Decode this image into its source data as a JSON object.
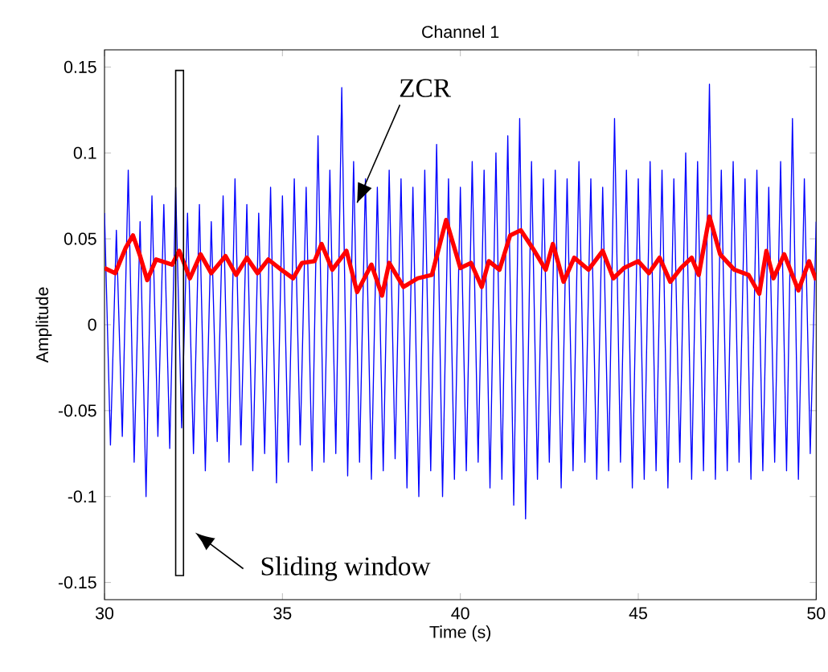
{
  "chart_data": {
    "type": "line",
    "title": "Channel 1",
    "xlabel": "Time (s)",
    "ylabel": "Amplitude",
    "xlim": [
      30,
      50
    ],
    "xticks": [
      30,
      35,
      40,
      45,
      50
    ],
    "ylim": [
      -0.16,
      0.16
    ],
    "yticks": [
      -0.15,
      -0.1,
      -0.05,
      0,
      0.05,
      0.1,
      0.15
    ],
    "series": [
      {
        "color": "#0000ff",
        "x": [
          30.0,
          30.167,
          30.333,
          30.5,
          30.667,
          30.833,
          31.0,
          31.167,
          31.333,
          31.5,
          31.667,
          31.833,
          32.0,
          32.167,
          32.333,
          32.5,
          32.667,
          32.833,
          33.0,
          33.167,
          33.333,
          33.5,
          33.667,
          33.833,
          34.0,
          34.167,
          34.333,
          34.5,
          34.667,
          34.833,
          35.0,
          35.167,
          35.333,
          35.5,
          35.667,
          35.833,
          36.0,
          36.167,
          36.333,
          36.5,
          36.667,
          36.833,
          37.0,
          37.167,
          37.333,
          37.5,
          37.667,
          37.833,
          38.0,
          38.167,
          38.333,
          38.5,
          38.667,
          38.833,
          39.0,
          39.167,
          39.333,
          39.5,
          39.667,
          39.833,
          40.0,
          40.167,
          40.333,
          40.5,
          40.667,
          40.833,
          41.0,
          41.167,
          41.333,
          41.5,
          41.667,
          41.833,
          42.0,
          42.167,
          42.333,
          42.5,
          42.667,
          42.833,
          43.0,
          43.167,
          43.333,
          43.5,
          43.667,
          43.833,
          44.0,
          44.167,
          44.333,
          44.5,
          44.667,
          44.833,
          45.0,
          45.167,
          45.333,
          45.5,
          45.667,
          45.833,
          46.0,
          46.167,
          46.333,
          46.5,
          46.667,
          46.833,
          47.0,
          47.167,
          47.333,
          47.5,
          47.667,
          47.833,
          48.0,
          48.167,
          48.333,
          48.5,
          48.667,
          48.833,
          49.0,
          49.167,
          49.333,
          49.5,
          49.667,
          49.833,
          50.0
        ],
        "values": [
          0.065,
          -0.07,
          0.055,
          -0.065,
          0.09,
          -0.08,
          0.06,
          -0.1,
          0.075,
          -0.065,
          0.07,
          -0.072,
          0.08,
          -0.06,
          0.065,
          -0.075,
          0.07,
          -0.085,
          0.06,
          -0.068,
          0.075,
          -0.08,
          0.085,
          -0.07,
          0.07,
          -0.085,
          0.065,
          -0.075,
          0.08,
          -0.092,
          0.075,
          -0.08,
          0.085,
          -0.07,
          0.08,
          -0.085,
          0.11,
          -0.08,
          0.09,
          -0.075,
          0.138,
          -0.088,
          0.095,
          -0.08,
          0.085,
          -0.09,
          0.08,
          -0.085,
          0.09,
          -0.078,
          0.085,
          -0.095,
          0.08,
          -0.1,
          0.09,
          -0.085,
          0.105,
          -0.1,
          0.085,
          -0.09,
          0.08,
          -0.085,
          0.095,
          -0.08,
          0.09,
          -0.095,
          0.1,
          -0.09,
          0.11,
          -0.105,
          0.12,
          -0.113,
          0.095,
          -0.09,
          0.085,
          -0.08,
          0.09,
          -0.095,
          0.085,
          -0.085,
          0.095,
          -0.08,
          0.085,
          -0.09,
          0.08,
          -0.085,
          0.12,
          -0.08,
          0.09,
          -0.095,
          0.085,
          -0.09,
          0.095,
          -0.085,
          0.09,
          -0.095,
          0.085,
          -0.08,
          0.1,
          -0.09,
          0.095,
          -0.085,
          0.14,
          -0.09,
          0.09,
          -0.085,
          0.095,
          -0.08,
          0.085,
          -0.09,
          0.09,
          -0.085,
          0.08,
          -0.08,
          0.095,
          -0.085,
          0.12,
          -0.09,
          0.085,
          -0.075,
          0.06
        ]
      },
      {
        "color": "#ff0000",
        "x": [
          30.0,
          30.3,
          30.6,
          30.8,
          31.0,
          31.2,
          31.45,
          31.9,
          32.1,
          32.4,
          32.7,
          33.0,
          33.4,
          33.7,
          34.0,
          34.3,
          34.6,
          34.97,
          35.3,
          35.55,
          35.9,
          36.1,
          36.4,
          36.8,
          37.1,
          37.5,
          37.8,
          38.0,
          38.4,
          38.8,
          39.2,
          39.6,
          40.0,
          40.3,
          40.6,
          40.8,
          41.1,
          41.4,
          41.7,
          42.05,
          42.4,
          42.6,
          42.9,
          43.2,
          43.6,
          44.0,
          44.3,
          44.6,
          45.0,
          45.3,
          45.6,
          45.9,
          46.2,
          46.5,
          46.7,
          47.0,
          47.3,
          47.7,
          48.1,
          48.4,
          48.6,
          48.8,
          49.1,
          49.5,
          49.8,
          50.0
        ],
        "values": [
          0.033,
          0.03,
          0.045,
          0.052,
          0.04,
          0.026,
          0.038,
          0.035,
          0.043,
          0.027,
          0.041,
          0.03,
          0.04,
          0.029,
          0.039,
          0.03,
          0.038,
          0.032,
          0.027,
          0.036,
          0.037,
          0.047,
          0.032,
          0.043,
          0.019,
          0.035,
          0.017,
          0.036,
          0.022,
          0.027,
          0.029,
          0.061,
          0.033,
          0.036,
          0.022,
          0.037,
          0.032,
          0.052,
          0.055,
          0.044,
          0.032,
          0.047,
          0.025,
          0.039,
          0.032,
          0.043,
          0.027,
          0.033,
          0.037,
          0.03,
          0.039,
          0.025,
          0.033,
          0.039,
          0.029,
          0.063,
          0.041,
          0.032,
          0.029,
          0.018,
          0.043,
          0.027,
          0.041,
          0.02,
          0.037,
          0.026
        ]
      }
    ],
    "annotations": [
      {
        "text": "ZCR",
        "x": 37.1,
        "y": 0.071
      },
      "Sliding window"
    ]
  }
}
